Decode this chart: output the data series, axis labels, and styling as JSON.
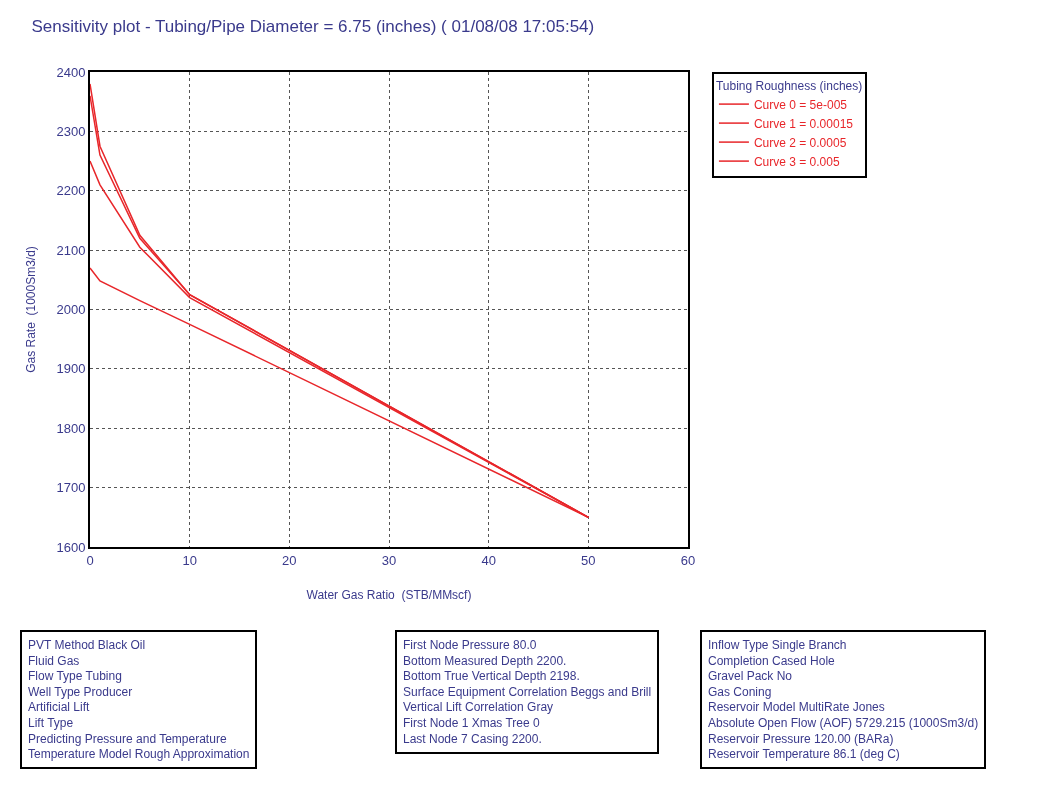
{
  "chart_data": {
    "type": "line",
    "title": "Sensitivity plot - Tubing/Pipe Diameter = 6.75 (inches) ( 01/08/08 17:05:54)",
    "xlabel": "Water Gas Ratio  (STB/MMscf)",
    "ylabel": "Gas Rate  (1000Sm3/d)",
    "legend_title": "Tubing Roughness (inches)",
    "x": [
      0,
      1,
      5,
      10,
      50
    ],
    "series": [
      {
        "name": "Curve 0 = 5e-005",
        "color": "#e8262a",
        "values": [
          2380,
          2275,
          2125,
          2025,
          1650
        ]
      },
      {
        "name": "Curve 1 = 0.00015",
        "color": "#e8262a",
        "values": [
          2360,
          2260,
          2120,
          2025,
          1650
        ]
      },
      {
        "name": "Curve 2 = 0.0005",
        "color": "#e8262a",
        "values": [
          2250,
          2210,
          2105,
          2020,
          1650
        ]
      },
      {
        "name": "Curve 3 = 0.005",
        "color": "#e8262a",
        "values": [
          2070,
          2048,
          2015,
          1975,
          1650
        ]
      }
    ],
    "xlim": [
      0,
      60
    ],
    "xticks": [
      0,
      10,
      20,
      30,
      40,
      50,
      60
    ],
    "ylim": [
      1600,
      2400
    ],
    "yticks": [
      1600,
      1700,
      1800,
      1900,
      2000,
      2100,
      2200,
      2300,
      2400
    ],
    "grid": true,
    "legend": "right",
    "line_style": "solid",
    "annotations": [
      "PVT Method Black Oil\nFluid Gas\nFlow Type Tubing\nWell Type Producer\nArtificial Lift\nLift Type\nPredicting Pressure and Temperature\nTemperature Model Rough Approximation",
      "First Node Pressure 80.0\nBottom Measured Depth 2200.\nBottom True Vertical Depth 2198.\nSurface Equipment Correlation Beggs and Brill\nVertical Lift Correlation Gray\nFirst Node 1 Xmas Tree 0\nLast Node 7 Casing 2200.",
      "Inflow Type Single Branch\nCompletion Cased Hole\nGravel Pack No\nGas Coning\nReservoir Model MultiRate Jones\nAbsolute Open Flow (AOF) 5729.215 (1000Sm3/d)\nReservoir Pressure 120.00 (BARa)\nReservoir Temperature 86.1 (deg C)"
    ]
  }
}
